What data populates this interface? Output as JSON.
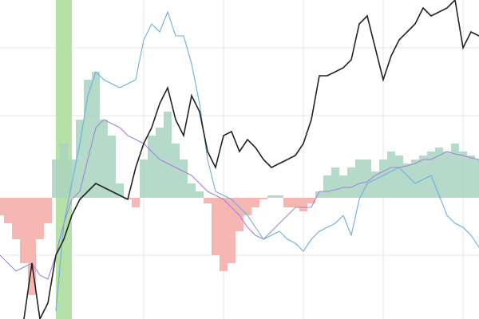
{
  "chart_data": {
    "type": "line",
    "x": [
      0,
      10,
      20,
      30,
      40,
      50,
      60,
      70,
      80,
      90,
      100,
      110,
      120,
      130,
      140,
      150,
      160,
      170,
      180,
      190,
      200,
      210,
      220,
      230,
      240,
      250,
      260,
      270,
      280,
      290,
      300,
      310,
      320,
      330,
      340,
      350,
      360,
      370,
      380,
      390,
      400,
      410,
      420,
      430,
      440,
      450,
      460,
      470,
      480,
      490,
      500,
      510,
      520,
      530,
      540,
      550,
      560,
      570,
      580,
      590,
      600
    ],
    "xlim": [
      0,
      600
    ],
    "ylim": [
      -152,
      248
    ],
    "xticks": [
      80,
      180,
      280,
      380,
      480,
      580
    ],
    "yticks": [
      -72,
      103,
      188
    ],
    "grid": true,
    "highlight": {
      "range": [
        70,
        90
      ],
      "color": "#b5e0a8"
    },
    "histogram": {
      "positive_color": "#a9d3c0",
      "negative_color": "#f4aaa6",
      "values": [
        -22,
        -32,
        -52,
        -82,
        -122,
        -52,
        -32,
        48,
        68,
        48,
        98,
        148,
        158,
        98,
        78,
        18,
        -2,
        -12,
        48,
        78,
        88,
        108,
        68,
        48,
        18,
        8,
        -7,
        -72,
        -92,
        -82,
        -42,
        -22,
        -12,
        -2,
        3,
        3,
        -12,
        -12,
        -17,
        -7,
        8,
        28,
        38,
        28,
        38,
        48,
        48,
        33,
        48,
        58,
        53,
        43,
        48,
        53,
        58,
        63,
        58,
        68,
        58,
        53,
        48
      ]
    },
    "series": [
      {
        "color": "#a283d6",
        "values": [
          -72,
          -82,
          -92,
          -87,
          -82,
          -97,
          -102,
          -72,
          -32,
          -2,
          8,
          48,
          88,
          98,
          93,
          88,
          78,
          73,
          68,
          58,
          48,
          43,
          38,
          33,
          28,
          18,
          8,
          3,
          -2,
          -12,
          -22,
          -37,
          -47,
          -52,
          -42,
          -32,
          -22,
          -12,
          -12,
          -12,
          8,
          8,
          10,
          13,
          13,
          18,
          20,
          28,
          33,
          38,
          38,
          40,
          43,
          48,
          48,
          53,
          58,
          55,
          53,
          50,
          48
        ]
      },
      {
        "color": "#6aaee0",
        "values": [
          null,
          null,
          null,
          null,
          null,
          null,
          null,
          -142,
          -32,
          18,
          68,
          128,
          158,
          148,
          143,
          138,
          143,
          148,
          198,
          218,
          208,
          233,
          203,
          203,
          168,
          118,
          48,
          8,
          3,
          -2,
          -12,
          -22,
          -37,
          -52,
          -47,
          -42,
          -52,
          -57,
          -67,
          -52,
          -42,
          -37,
          -32,
          -22,
          -47,
          -2,
          18,
          23,
          28,
          33,
          38,
          28,
          18,
          23,
          28,
          3,
          -22,
          -32,
          -37,
          -47,
          -62
        ]
      },
      {
        "color": "#222222",
        "values": [
          null,
          null,
          null,
          -152,
          -82,
          -152,
          -132,
          -72,
          -52,
          -22,
          -2,
          8,
          18,
          13,
          8,
          3,
          -2,
          38,
          68,
          88,
          118,
          138,
          98,
          78,
          128,
          108,
          58,
          38,
          78,
          83,
          58,
          73,
          63,
          48,
          38,
          43,
          48,
          53,
          68,
          98,
          153,
          153,
          158,
          163,
          173,
          218,
          228,
          188,
          148,
          178,
          198,
          208,
          218,
          238,
          228,
          233,
          238,
          248,
          188,
          208,
          203
        ]
      }
    ]
  }
}
